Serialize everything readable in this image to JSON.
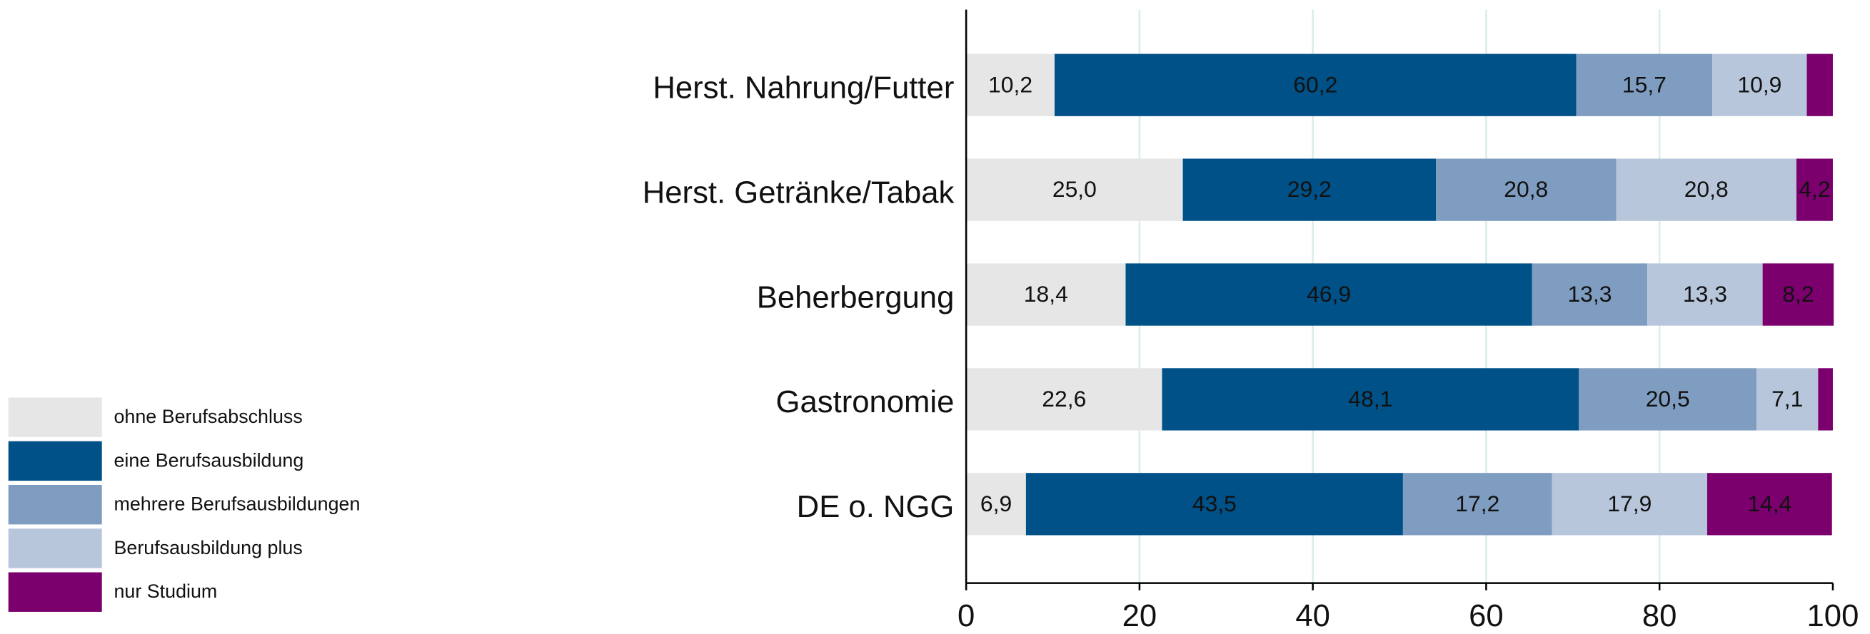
{
  "chart_data": {
    "type": "stacked-bar-horizontal",
    "categories": [
      "Herst. Nahrung/Futter",
      "Herst. Getränke/Tabak",
      "Beherbergung",
      "Gastronomie",
      "DE o. NGG"
    ],
    "series": [
      {
        "name": "ohne Berufsabschluss",
        "color": "#e6e6e6",
        "values": [
          10.2,
          25.0,
          18.4,
          22.6,
          6.9
        ],
        "value_labels": [
          "10,2",
          "25,0",
          "18,4",
          "22,6",
          "6,9"
        ]
      },
      {
        "name": "eine Berufsausbildung",
        "color": "#005187",
        "values": [
          60.2,
          29.2,
          46.9,
          48.1,
          43.5
        ],
        "value_labels": [
          "60,2",
          "29,2",
          "46,9",
          "48,1",
          "43,5"
        ]
      },
      {
        "name": "mehrere Berufsausbildungen",
        "color": "#7f9dc0",
        "values": [
          15.7,
          20.8,
          13.3,
          20.5,
          17.2
        ],
        "value_labels": [
          "15,7",
          "20,8",
          "13,3",
          "20,5",
          "17,2"
        ]
      },
      {
        "name": "Berufsausbildung plus",
        "color": "#b8c6dc",
        "values": [
          10.9,
          20.8,
          13.3,
          7.1,
          17.9
        ],
        "value_labels": [
          "10,9",
          "20,8",
          "13,3",
          "7,1",
          "17,9"
        ]
      },
      {
        "name": "nur Studium",
        "color": "#7b006e",
        "values": [
          3.0,
          4.2,
          8.2,
          1.7,
          14.4
        ],
        "value_labels": [
          null,
          "4,2",
          "8,2",
          null,
          "14,4"
        ]
      }
    ],
    "xlim": [
      0,
      100
    ],
    "xticks": [
      0,
      20,
      40,
      60,
      80,
      100
    ],
    "grid": true,
    "legend": "left"
  }
}
